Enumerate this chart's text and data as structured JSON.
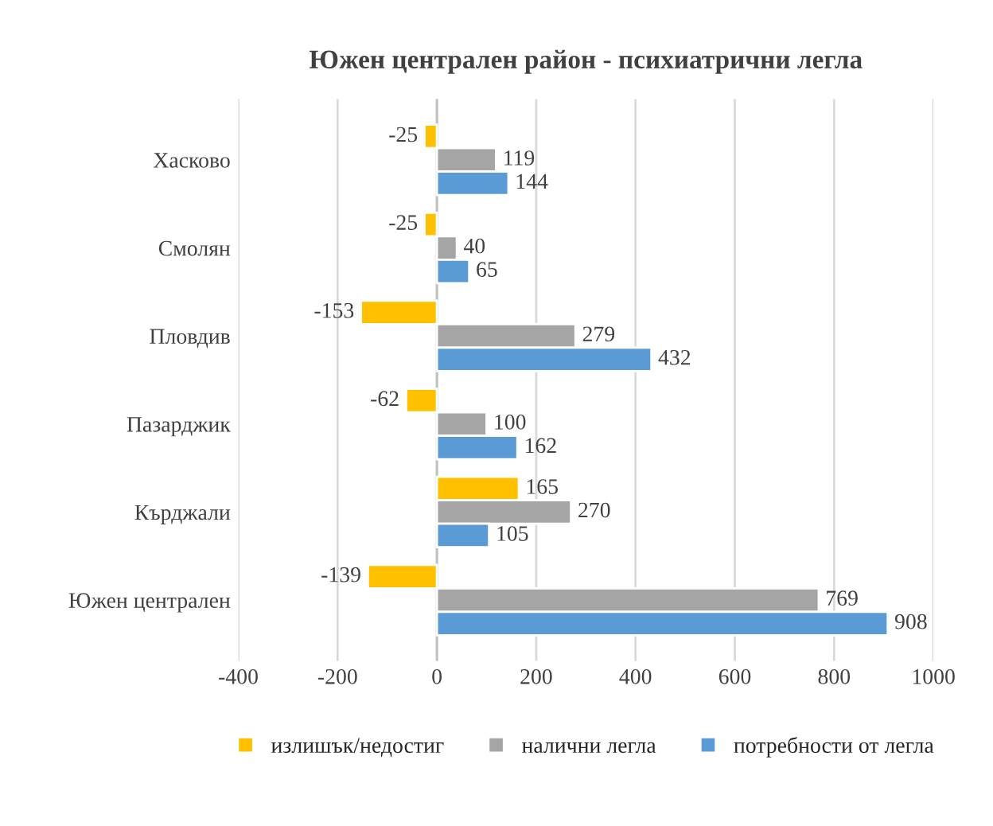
{
  "chart_data": {
    "type": "bar",
    "orientation": "horizontal",
    "title": "Южен централен район - психиатрични легла",
    "categories": [
      "Хасково",
      "Смолян",
      "Пловдив",
      "Пазарджик",
      "Кърджали",
      "Южен централен"
    ],
    "series": [
      {
        "name": "излишък/недостиг",
        "color": "#ffc000",
        "values": [
          -25,
          -25,
          -153,
          -62,
          165,
          -139
        ]
      },
      {
        "name": "налични легла",
        "color": "#a5a5a5",
        "values": [
          119,
          40,
          279,
          100,
          270,
          769
        ]
      },
      {
        "name": "потребности от легла",
        "color": "#5b9bd5",
        "values": [
          144,
          65,
          432,
          162,
          105,
          908
        ]
      }
    ],
    "xlim": [
      -400,
      1000
    ],
    "xticks": [
      -400,
      -200,
      0,
      200,
      400,
      600,
      800,
      1000
    ],
    "grid": "x",
    "legend": "bottom",
    "data_labels": true
  }
}
